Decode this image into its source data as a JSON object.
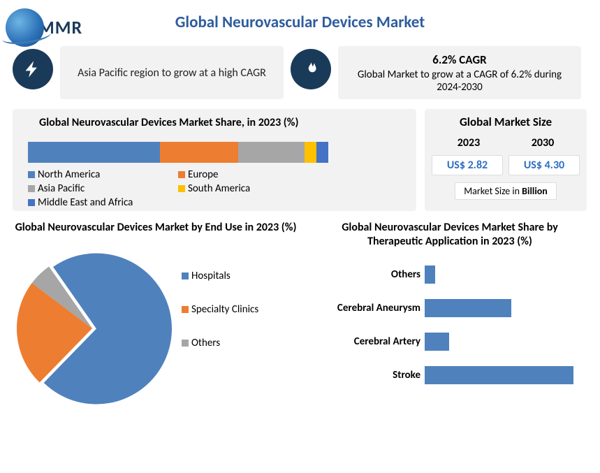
{
  "logo": {
    "text": "MMR"
  },
  "title": "Global Neurovascular Devices Market",
  "info_left": {
    "text": "Asia Pacific region to grow at a high CAGR"
  },
  "info_right": {
    "headline": "6.2% CAGR",
    "sub": "Global Market to grow at a CAGR of 6.2% during 2024-2030"
  },
  "colors": {
    "accent_circle": "#1a3a5a",
    "title": "#2e5c9e",
    "panel_bg": "#f2f2f2",
    "value_text": "#2e6fc4"
  },
  "share": {
    "title": "Global Neurovascular Devices Market Share, in 2023 (%)",
    "type": "stacked-bar",
    "segments": [
      {
        "label": "North America",
        "value": 44,
        "color": "#4f81bd"
      },
      {
        "label": "Europe",
        "value": 26,
        "color": "#ed7d31"
      },
      {
        "label": "Asia Pacific",
        "value": 22,
        "color": "#a6a6a6"
      },
      {
        "label": "South America",
        "value": 4,
        "color": "#ffc000"
      },
      {
        "label": "Middle East and Africa",
        "value": 4,
        "color": "#4472c4"
      }
    ]
  },
  "market_size": {
    "title": "Global Market Size",
    "year_a": "2023",
    "year_b": "2030",
    "value_a": "US$ 2.82",
    "value_b": "US$ 4.30",
    "unit_prefix": "Market Size in ",
    "unit_bold": "Billion"
  },
  "pie": {
    "title": "Global Neurovascular Devices Market by End Use in 2023 (%)",
    "type": "pie",
    "radius": 108,
    "start_angle_deg": -125,
    "slices": [
      {
        "label": "Hospitals",
        "value": 72,
        "color": "#4f81bd"
      },
      {
        "label": "Specialty Clinics",
        "value": 23,
        "color": "#ed7d31"
      },
      {
        "label": "Others",
        "value": 5,
        "color": "#a6a6a6"
      }
    ]
  },
  "hbar": {
    "title": "Global Neurovascular Devices Market Share by Therapeutic Application in 2023 (%)",
    "type": "bar-horizontal",
    "max": 60,
    "bar_color": "#4f81bd",
    "items": [
      {
        "label": "Others",
        "value": 4
      },
      {
        "label": "Cerebral Aneurysm",
        "value": 32
      },
      {
        "label": "Cerebral Artery",
        "value": 9
      },
      {
        "label": "Stroke",
        "value": 55
      }
    ]
  }
}
